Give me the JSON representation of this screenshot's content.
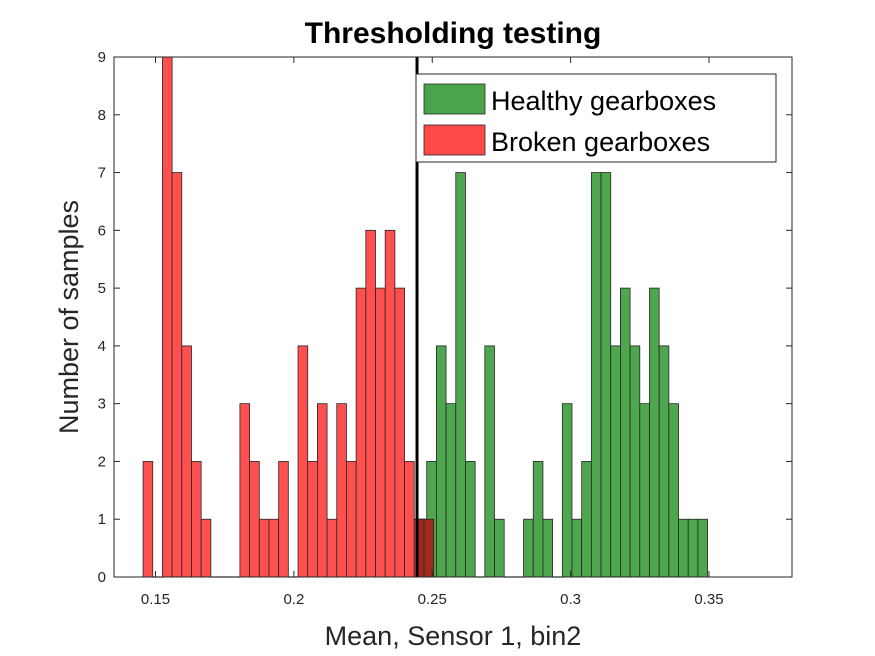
{
  "chart_data": {
    "type": "bar",
    "title": "Thresholding testing",
    "xlabel": "Mean, Sensor 1, bin2",
    "ylabel": "Number of samples",
    "xlim": [
      0.135,
      0.38
    ],
    "ylim": [
      0,
      9
    ],
    "xticks": [
      0.15,
      0.2,
      0.25,
      0.3,
      0.35
    ],
    "yticks": [
      0,
      1,
      2,
      3,
      4,
      5,
      6,
      7,
      8,
      9
    ],
    "bin_width": 0.0035,
    "threshold": 0.2445,
    "legend_position": "top-right",
    "series": [
      {
        "name": "Healthy gearboxes",
        "color": "#4aa54a",
        "bins": [
          {
            "x0": 0.2445,
            "count": 1
          },
          {
            "x0": 0.248,
            "count": 2
          },
          {
            "x0": 0.2515,
            "count": 4
          },
          {
            "x0": 0.255,
            "count": 3
          },
          {
            "x0": 0.2585,
            "count": 7
          },
          {
            "x0": 0.262,
            "count": 2
          },
          {
            "x0": 0.2655,
            "count": 0
          },
          {
            "x0": 0.269,
            "count": 4
          },
          {
            "x0": 0.2725,
            "count": 1
          },
          {
            "x0": 0.276,
            "count": 0
          },
          {
            "x0": 0.2795,
            "count": 0
          },
          {
            "x0": 0.283,
            "count": 1
          },
          {
            "x0": 0.2865,
            "count": 2
          },
          {
            "x0": 0.29,
            "count": 1
          },
          {
            "x0": 0.2935,
            "count": 0
          },
          {
            "x0": 0.297,
            "count": 3
          },
          {
            "x0": 0.3005,
            "count": 1
          },
          {
            "x0": 0.304,
            "count": 2
          },
          {
            "x0": 0.3075,
            "count": 7
          },
          {
            "x0": 0.311,
            "count": 7
          },
          {
            "x0": 0.3145,
            "count": 4
          },
          {
            "x0": 0.318,
            "count": 5
          },
          {
            "x0": 0.3215,
            "count": 4
          },
          {
            "x0": 0.325,
            "count": 3
          },
          {
            "x0": 0.3285,
            "count": 5
          },
          {
            "x0": 0.332,
            "count": 4
          },
          {
            "x0": 0.3355,
            "count": 3
          },
          {
            "x0": 0.339,
            "count": 1
          },
          {
            "x0": 0.3425,
            "count": 1
          },
          {
            "x0": 0.346,
            "count": 1
          }
        ]
      },
      {
        "name": "Broken gearboxes",
        "color": "#ff4a4a",
        "bins": [
          {
            "x0": 0.1455,
            "count": 2
          },
          {
            "x0": 0.149,
            "count": 0
          },
          {
            "x0": 0.1525,
            "count": 9
          },
          {
            "x0": 0.156,
            "count": 7
          },
          {
            "x0": 0.1595,
            "count": 4
          },
          {
            "x0": 0.163,
            "count": 2
          },
          {
            "x0": 0.1665,
            "count": 1
          },
          {
            "x0": 0.17,
            "count": 0
          },
          {
            "x0": 0.1735,
            "count": 0
          },
          {
            "x0": 0.177,
            "count": 0
          },
          {
            "x0": 0.1805,
            "count": 3
          },
          {
            "x0": 0.184,
            "count": 2
          },
          {
            "x0": 0.1875,
            "count": 1
          },
          {
            "x0": 0.191,
            "count": 1
          },
          {
            "x0": 0.1945,
            "count": 2
          },
          {
            "x0": 0.198,
            "count": 0
          },
          {
            "x0": 0.2015,
            "count": 4
          },
          {
            "x0": 0.205,
            "count": 2
          },
          {
            "x0": 0.2085,
            "count": 3
          },
          {
            "x0": 0.212,
            "count": 1
          },
          {
            "x0": 0.2155,
            "count": 3
          },
          {
            "x0": 0.219,
            "count": 2
          },
          {
            "x0": 0.2225,
            "count": 5
          },
          {
            "x0": 0.226,
            "count": 6
          },
          {
            "x0": 0.2295,
            "count": 5
          },
          {
            "x0": 0.233,
            "count": 6
          },
          {
            "x0": 0.2365,
            "count": 5
          },
          {
            "x0": 0.24,
            "count": 2
          },
          {
            "x0": 0.2435,
            "count": 1
          },
          {
            "x0": 0.247,
            "count": 1
          }
        ]
      }
    ]
  }
}
